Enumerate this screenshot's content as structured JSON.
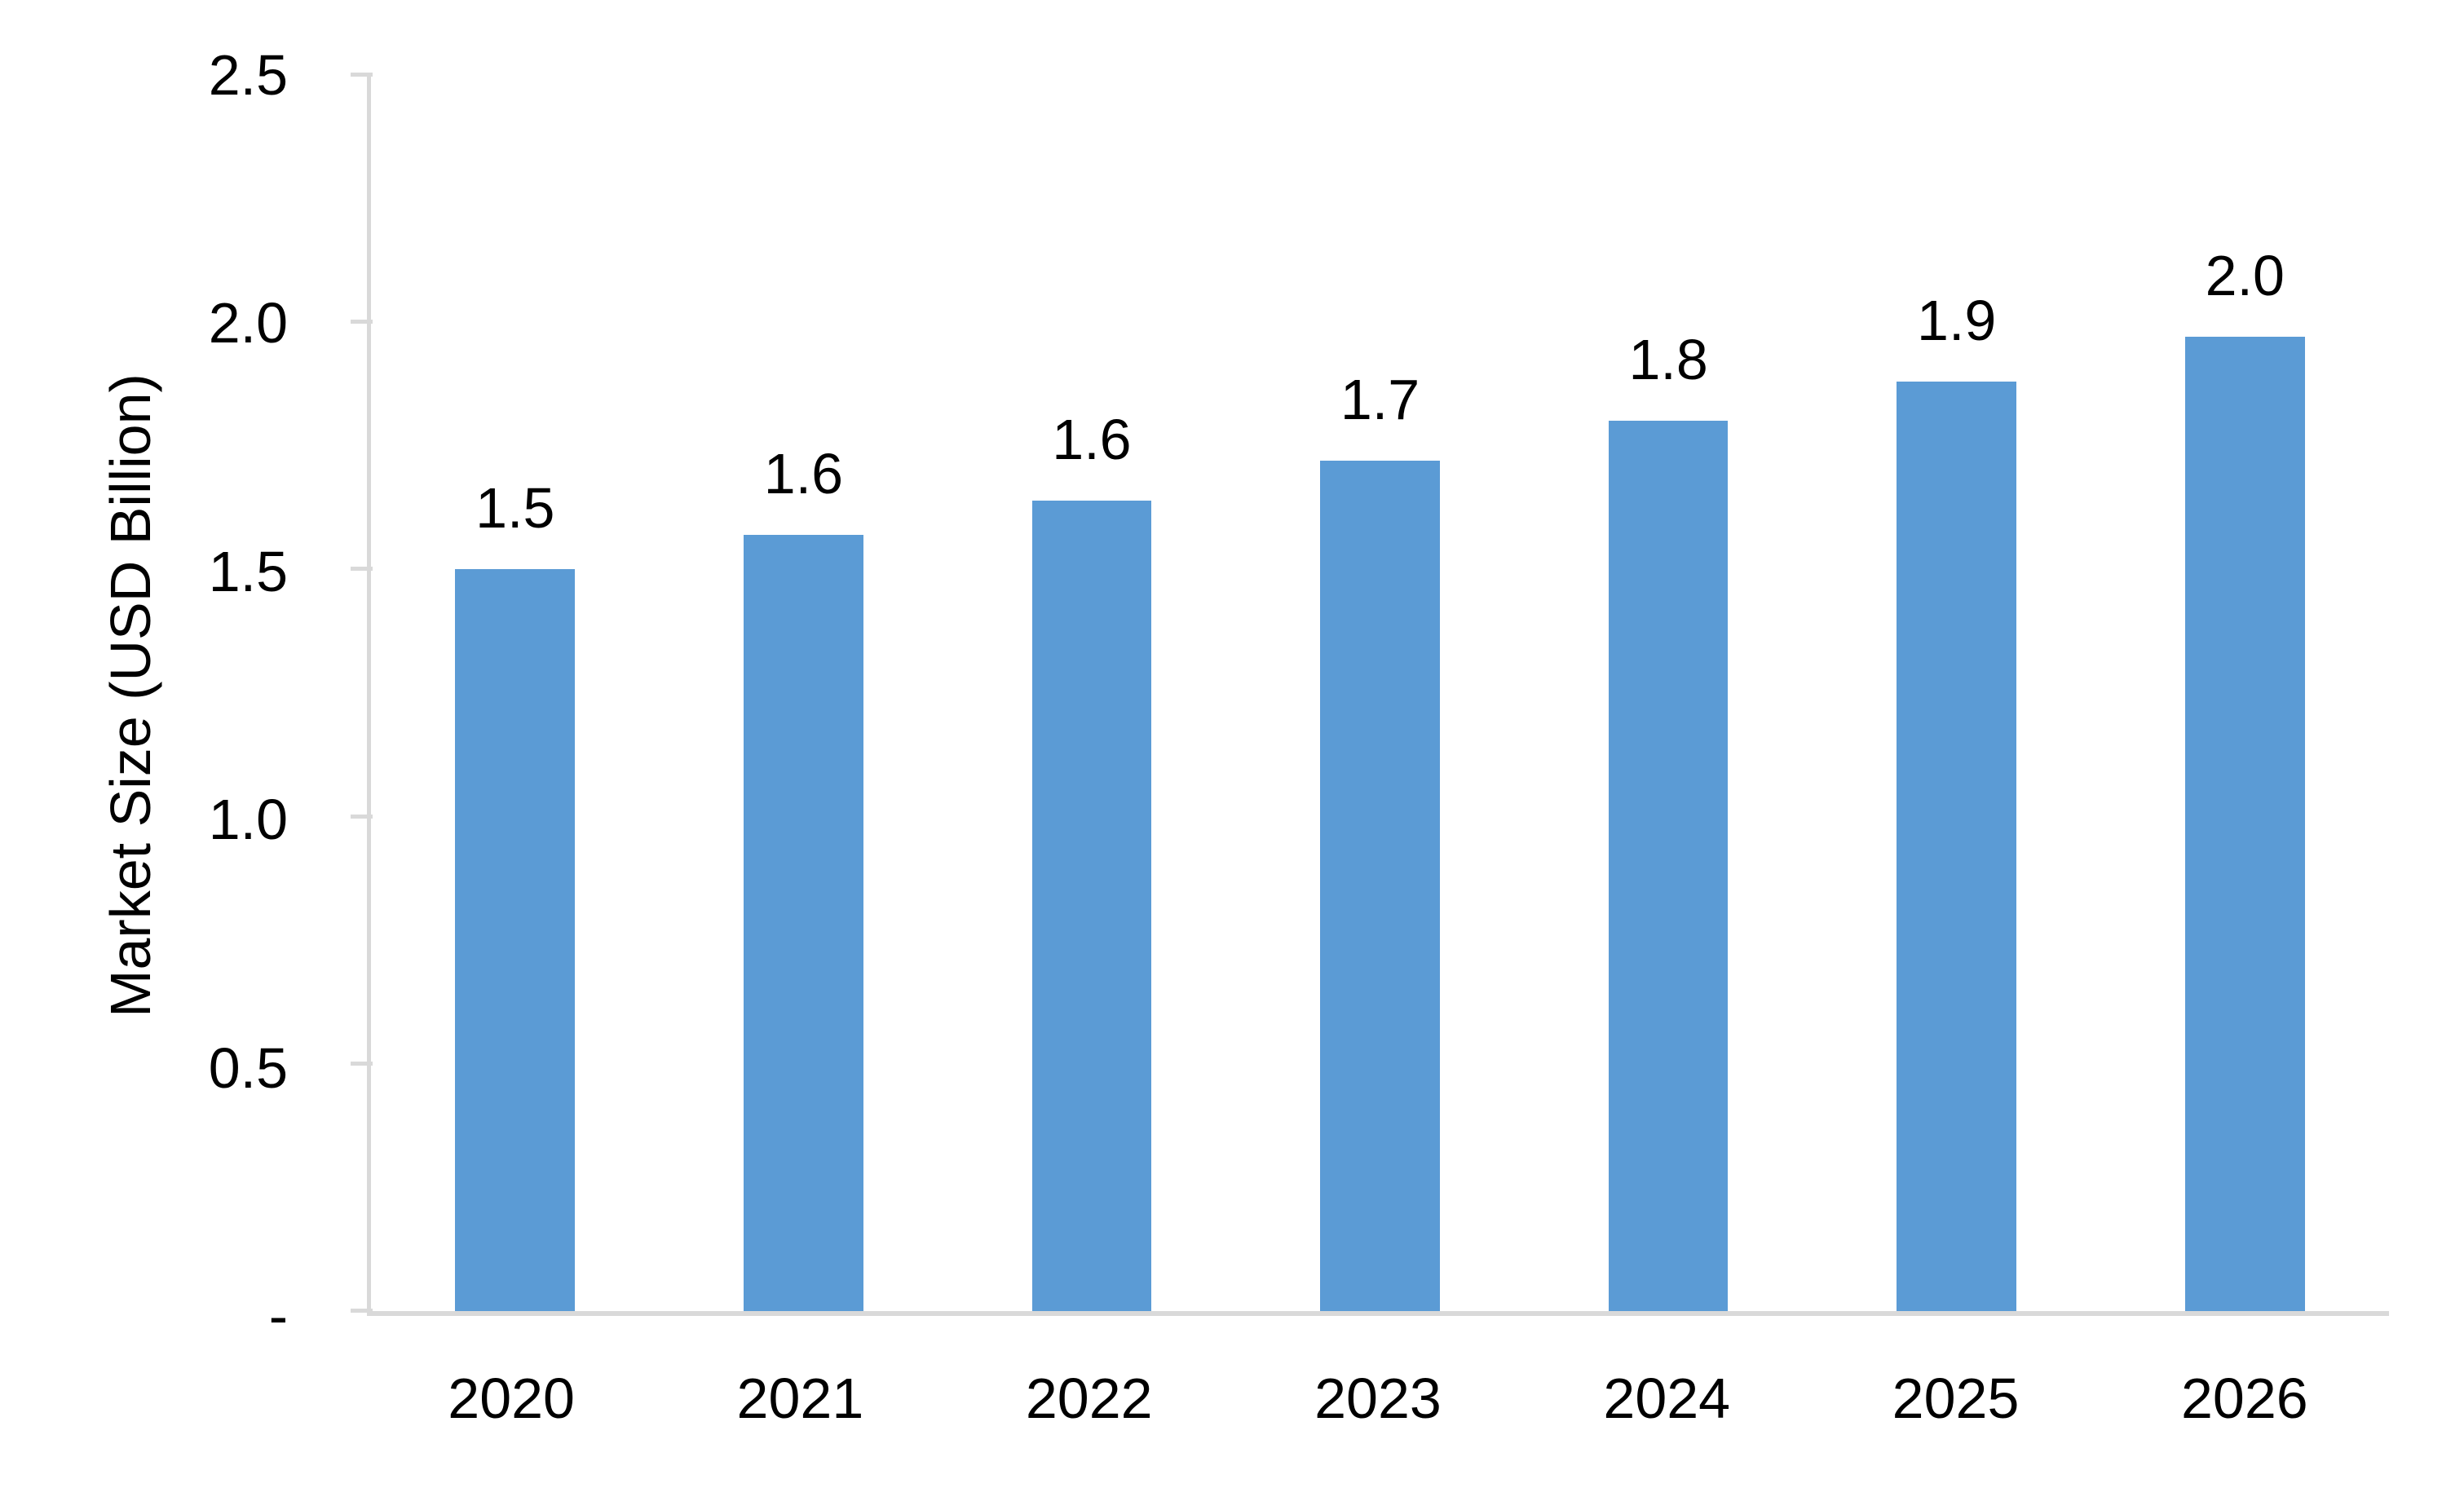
{
  "chart_data": {
    "type": "bar",
    "title": "",
    "ylabel": "Market Size (USD Billion)",
    "xlabel": "",
    "categories": [
      "2020",
      "2021",
      "2022",
      "2023",
      "2024",
      "2025",
      "2026"
    ],
    "values": [
      1.5,
      1.57,
      1.64,
      1.72,
      1.8,
      1.88,
      1.97
    ],
    "bar_labels": [
      "1.5",
      "1.6",
      "1.6",
      "1.7",
      "1.8",
      "1.9",
      "2.0"
    ],
    "ylim": [
      0,
      2.5
    ],
    "ytick_labels_top_to_bottom": [
      "2.5",
      "2.0",
      "1.5",
      "1.0",
      "0.5",
      "-"
    ],
    "ytick_values_top_to_bottom": [
      2.5,
      2.0,
      1.5,
      1.0,
      0.5,
      0
    ],
    "grid": false,
    "legend": false,
    "bar_color": "#5B9BD5",
    "axis_color": "#D9D9D9",
    "text_color": "#000000"
  }
}
